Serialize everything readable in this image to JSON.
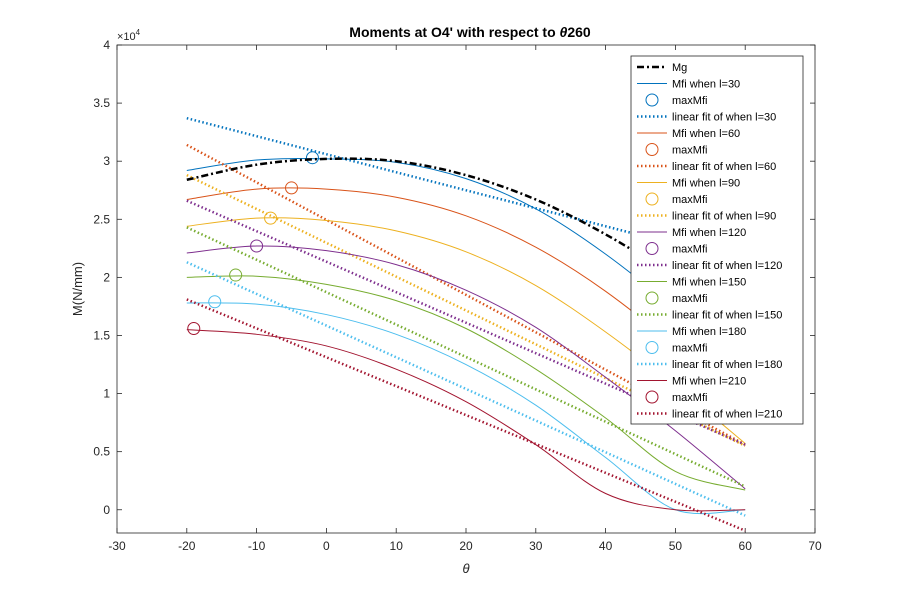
{
  "chart_data": {
    "type": "line",
    "title_main": "Moments at O4' with respect to ",
    "title_symbol": "θ",
    "title_tail": "260",
    "xlabel": "θ",
    "ylabel": "M(N/mm)",
    "xlim": [
      -30,
      70
    ],
    "ylim": [
      -2000,
      40000
    ],
    "xticks": [
      -30,
      -20,
      -10,
      0,
      10,
      20,
      30,
      40,
      50,
      60,
      70
    ],
    "yticks": [
      0,
      5000,
      10000,
      15000,
      20000,
      25000,
      30000,
      35000,
      40000
    ],
    "ytick_labels": [
      "0",
      "0.5",
      "1",
      "1.5",
      "2",
      "2.5",
      "3",
      "3.5",
      "4"
    ],
    "y_exponent_base": "×10",
    "y_exponent_power": "4",
    "grid": false,
    "legend_position": "top-right",
    "x": [
      -20,
      -10,
      0,
      10,
      20,
      30,
      40,
      50,
      60
    ],
    "mg": {
      "name": "Mg",
      "color": "#000000",
      "values": [
        28400,
        29700,
        30200,
        30000,
        28800,
        26700,
        23700,
        20000,
        15800
      ]
    },
    "series": [
      {
        "name": "Mfi when l=30",
        "max_name": "maxMfi",
        "fit_name": "linear fit of when l=30",
        "color": "#0072BD",
        "values": [
          29200,
          30100,
          30200,
          29900,
          28500,
          25900,
          22000,
          17200,
          11700
        ],
        "max": [
          -2,
          30300
        ],
        "fit": [
          33700,
          21300
        ]
      },
      {
        "name": "Mfi when l=60",
        "max_name": "maxMfi",
        "fit_name": "linear fit of when l=60",
        "color": "#D95319",
        "values": [
          26700,
          27600,
          27600,
          26900,
          25300,
          22600,
          18800,
          14000,
          8300
        ],
        "max": [
          -5,
          27700
        ],
        "fit": [
          31400,
          5600
        ]
      },
      {
        "name": "Mfi when l=90",
        "max_name": "maxMfi",
        "fit_name": "linear fit of when l=90",
        "color": "#EDB120",
        "values": [
          24400,
          25100,
          24900,
          24000,
          22200,
          19300,
          15300,
          10700,
          5700
        ],
        "max": [
          -8,
          25100
        ],
        "fit": [
          28800,
          5500
        ]
      },
      {
        "name": "Mfi when l=120",
        "max_name": "maxMfi",
        "fit_name": "linear fit of when l=120",
        "color": "#7E2F8E",
        "values": [
          22100,
          22700,
          22300,
          21100,
          18900,
          15700,
          11400,
          6800,
          1800
        ],
        "max": [
          -10,
          22700
        ],
        "fit": [
          26600,
          5600
        ]
      },
      {
        "name": "Mfi when l=150",
        "max_name": "maxMfi",
        "fit_name": "linear fit of when l=150",
        "color": "#77AC30",
        "values": [
          20000,
          20100,
          19400,
          18000,
          15600,
          12100,
          7900,
          3300,
          1700
        ],
        "max": [
          -13,
          20200
        ],
        "fit": [
          24300,
          2000
        ]
      },
      {
        "name": "Mfi when l=180",
        "max_name": "maxMfi",
        "fit_name": "linear fit of when l=180",
        "color": "#4DBEEE",
        "values": [
          17800,
          17700,
          16800,
          15100,
          12500,
          9000,
          4500,
          0,
          0
        ],
        "max": [
          -16,
          17900
        ],
        "fit": [
          21300,
          -500
        ]
      },
      {
        "name": "Mfi when l=210",
        "max_name": "maxMfi",
        "fit_name": "linear fit of when l=210",
        "color": "#A2142F",
        "values": [
          15500,
          15100,
          14100,
          12100,
          9300,
          5600,
          1400,
          0,
          0
        ],
        "max": [
          -19,
          15600
        ],
        "fit": [
          18100,
          -1800
        ]
      }
    ]
  }
}
